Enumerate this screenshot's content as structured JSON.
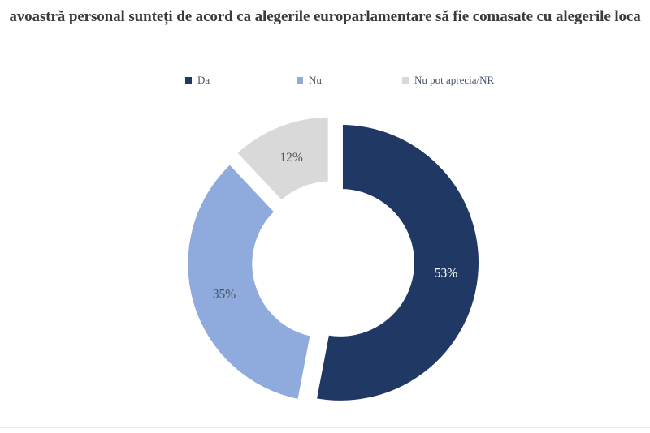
{
  "chart_data": {
    "type": "pie",
    "subtype": "donut",
    "title": "avoastră personal sunteți de acord ca alegerile europarlamentare să fie comasate cu alegerile loca",
    "title_color": "#3A3A3A",
    "categories": [
      "Da",
      "Nu",
      "Nu pot aprecia/NR"
    ],
    "values": [
      53,
      35,
      12
    ],
    "labels": [
      "53%",
      "35%",
      "12%"
    ],
    "unit": "%",
    "colors": [
      "#1F3864",
      "#8FAADC",
      "#D9D9D9"
    ],
    "label_colors": [
      "#FFFFFF",
      "#44546A",
      "#595959"
    ],
    "start_angle_deg": 0,
    "direction": "clockwise",
    "hole_ratio": 0.51,
    "exploded": true,
    "legend_position": "top",
    "legend_text_color": "#44546A",
    "background": "#FFFFFF"
  },
  "footer": {
    "divider_color": "#ECECEC"
  }
}
